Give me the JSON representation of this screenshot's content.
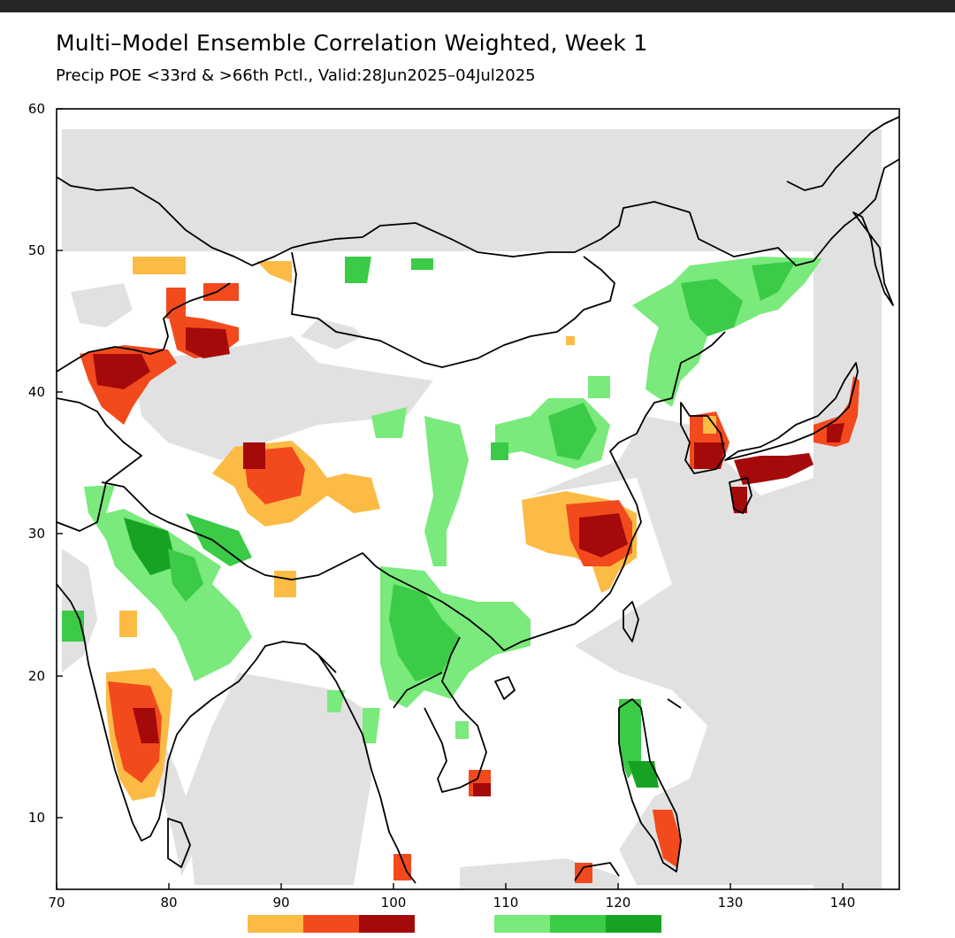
{
  "header": {
    "title": "Multi–Model Ensemble Correlation Weighted, Week 1",
    "subtitle": "Precip POE <33rd & >66th Pctl., Valid:28Jun2025–04Jul2025"
  },
  "map": {
    "x_ticks": [
      "70",
      "80",
      "90",
      "100",
      "110",
      "120",
      "130",
      "140"
    ],
    "y_ticks": [
      "60",
      "50",
      "40",
      "30",
      "20",
      "10"
    ],
    "lon_range": [
      70,
      145
    ],
    "lat_range": [
      5,
      60
    ],
    "no_forecast_color": "#e1e1e1",
    "land_outline_color": "#000000"
  },
  "legend": {
    "below_normal": [
      "#fbbb45",
      "#f24a1d",
      "#a50a0a"
    ],
    "above_normal": [
      "#79ea7b",
      "#3bcb47",
      "#16a323"
    ]
  }
}
